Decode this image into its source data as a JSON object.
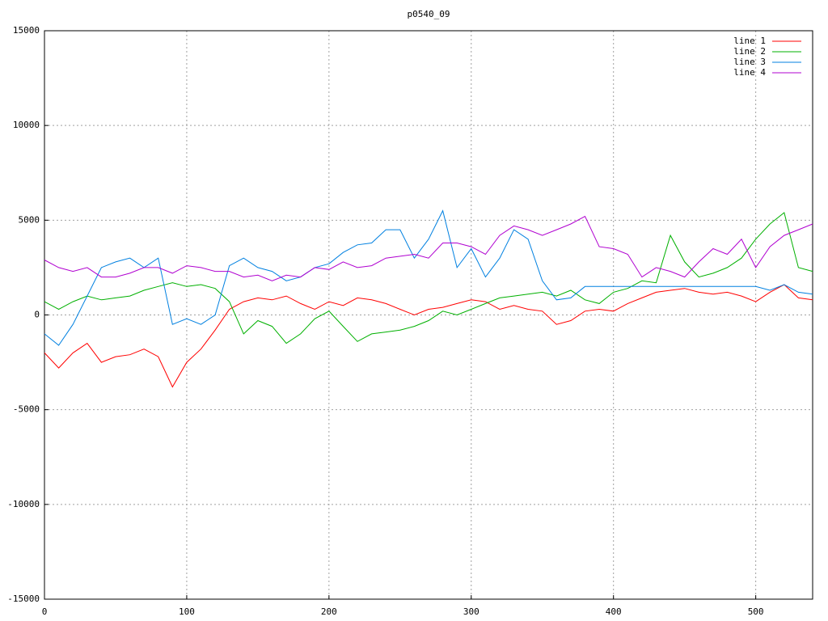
{
  "chart_data": {
    "type": "line",
    "title": "p0540_09",
    "x": [
      0,
      10,
      20,
      30,
      40,
      50,
      60,
      70,
      80,
      90,
      100,
      110,
      120,
      130,
      140,
      150,
      160,
      170,
      180,
      190,
      200,
      210,
      220,
      230,
      240,
      250,
      260,
      270,
      280,
      290,
      300,
      310,
      320,
      330,
      340,
      350,
      360,
      370,
      380,
      390,
      400,
      410,
      420,
      430,
      440,
      450,
      460,
      470,
      480,
      490,
      500,
      510,
      520,
      530,
      540
    ],
    "series": [
      {
        "name": "line 1",
        "color": "#ff0000",
        "values": [
          -2000,
          -2800,
          -2000,
          -1500,
          -2500,
          -2200,
          -2100,
          -1800,
          -2200,
          -3800,
          -2500,
          -1800,
          -800,
          300,
          700,
          900,
          800,
          1000,
          600,
          300,
          700,
          500,
          900,
          800,
          600,
          300,
          0,
          300,
          400,
          600,
          800,
          700,
          300,
          500,
          300,
          200,
          -500,
          -300,
          200,
          300,
          200,
          600,
          900,
          1200,
          1300,
          1400,
          1200,
          1100,
          1200,
          1000,
          700,
          1200,
          1600,
          900,
          800
        ]
      },
      {
        "name": "line 2",
        "color": "#00b000",
        "values": [
          700,
          300,
          700,
          1000,
          800,
          900,
          1000,
          1300,
          1500,
          1700,
          1500,
          1600,
          1400,
          700,
          -1000,
          -300,
          -600,
          -1500,
          -1000,
          -200,
          200,
          -600,
          -1400,
          -1000,
          -900,
          -800,
          -600,
          -300,
          200,
          0,
          300,
          600,
          900,
          1000,
          1100,
          1200,
          1000,
          1300,
          800,
          600,
          1200,
          1400,
          1800,
          1700,
          4200,
          2800,
          2000,
          2200,
          2500,
          3000,
          4000,
          4800,
          5400,
          2500,
          2300
        ]
      },
      {
        "name": "line 3",
        "color": "#0080e0",
        "values": [
          -1000,
          -1600,
          -500,
          1000,
          2500,
          2800,
          3000,
          2500,
          3000,
          -500,
          -200,
          -500,
          0,
          2600,
          3000,
          2500,
          2300,
          1800,
          2000,
          2500,
          2700,
          3300,
          3700,
          3800,
          4500,
          4500,
          3000,
          4000,
          5500,
          2500,
          3500,
          2000,
          3000,
          4500,
          4000,
          1800,
          800,
          900,
          1500,
          1500,
          1500,
          1500,
          1500,
          1500,
          1500,
          1500,
          1500,
          1500,
          1500,
          1500,
          1500,
          1300,
          1600,
          1200,
          1100
        ]
      },
      {
        "name": "line 4",
        "color": "#b000d0",
        "values": [
          2900,
          2500,
          2300,
          2500,
          2000,
          2000,
          2200,
          2500,
          2500,
          2200,
          2600,
          2500,
          2300,
          2300,
          2000,
          2100,
          1800,
          2100,
          2000,
          2500,
          2400,
          2800,
          2500,
          2600,
          3000,
          3100,
          3200,
          3000,
          3800,
          3800,
          3600,
          3200,
          4200,
          4700,
          4500,
          4200,
          4500,
          4800,
          5200,
          3600,
          3500,
          3200,
          2000,
          2500,
          2300,
          2000,
          2800,
          3500,
          3200,
          4000,
          2500,
          3600,
          4200,
          4500,
          4800
        ]
      }
    ],
    "xlim": [
      0,
      540
    ],
    "xticks": [
      0,
      100,
      200,
      300,
      400,
      500
    ],
    "ylim": [
      -15000,
      15000
    ],
    "yticks": [
      -15000,
      -10000,
      -5000,
      0,
      5000,
      10000,
      15000
    ],
    "grid": true,
    "legend": "top-right"
  }
}
